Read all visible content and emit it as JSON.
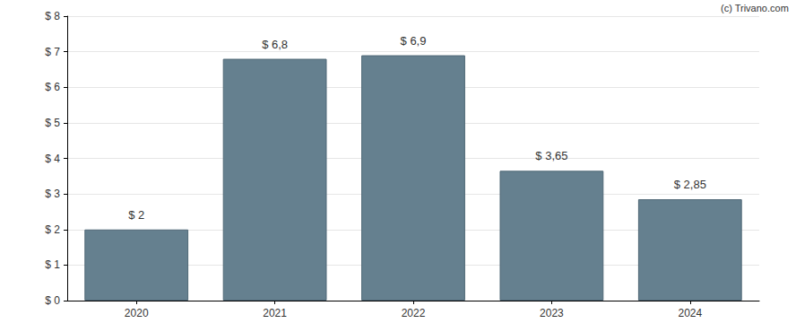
{
  "chart_data": {
    "type": "bar",
    "categories": [
      "2020",
      "2021",
      "2022",
      "2023",
      "2024"
    ],
    "values": [
      2,
      6.8,
      6.9,
      3.65,
      2.85
    ],
    "value_labels": [
      "$ 2",
      "$ 6,8",
      "$ 6,9",
      "$ 3,65",
      "$ 2,85"
    ],
    "color": "#65808f",
    "ylim": [
      0,
      8
    ],
    "yticks": [
      {
        "value": 0,
        "label": "$ 0"
      },
      {
        "value": 1,
        "label": "$ 1"
      },
      {
        "value": 2,
        "label": "$ 2"
      },
      {
        "value": 3,
        "label": "$ 3"
      },
      {
        "value": 4,
        "label": "$ 4"
      },
      {
        "value": 5,
        "label": "$ 5"
      },
      {
        "value": 6,
        "label": "$ 6"
      },
      {
        "value": 7,
        "label": "$ 7"
      },
      {
        "value": 8,
        "label": "$ 8"
      }
    ],
    "grid": true,
    "data_labels": true,
    "annotations": [
      "(c) Trivano.com"
    ]
  }
}
